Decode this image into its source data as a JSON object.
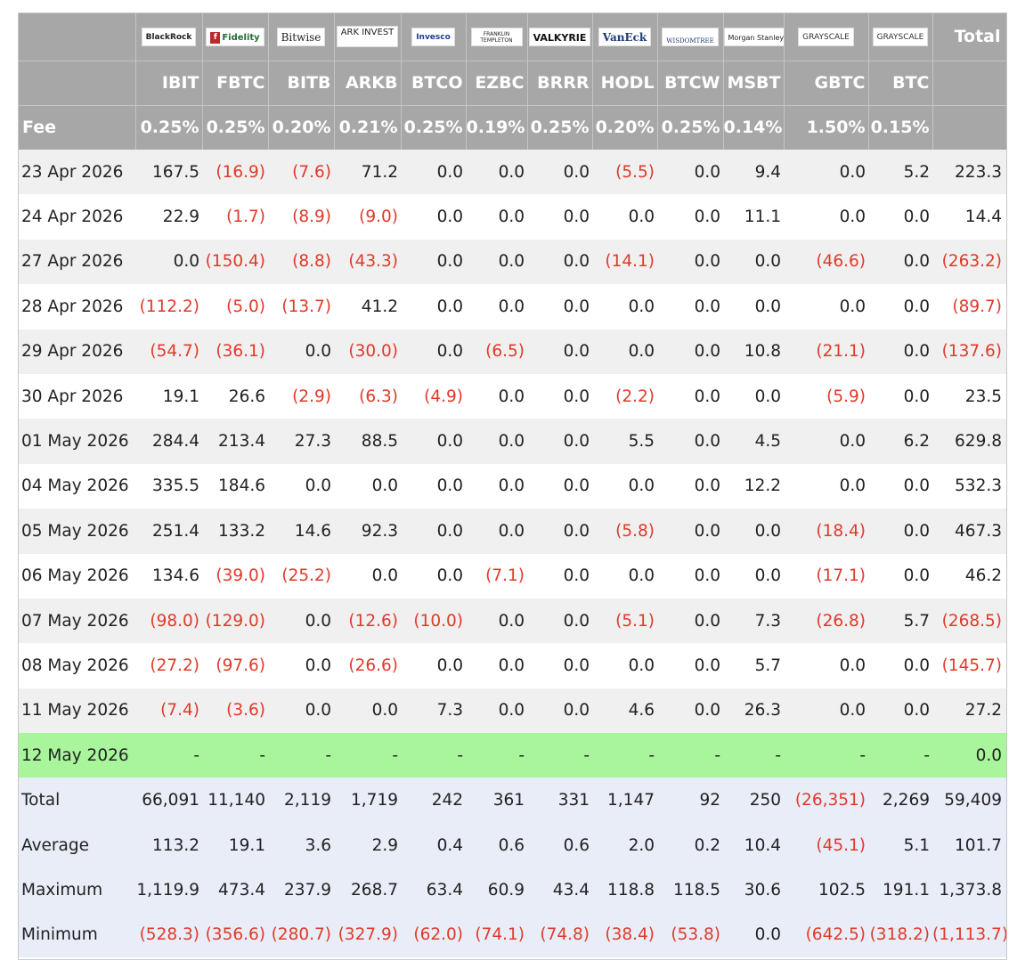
{
  "logos": [
    {
      "text": "BlackRock"
    },
    {
      "text": "Fidelity"
    },
    {
      "text": "Bitwise"
    },
    {
      "text": "ARK INVEST"
    },
    {
      "text": "Invesco"
    },
    {
      "text": "FRANKLIN TEMPLETON"
    },
    {
      "text": "VALKYRIE"
    },
    {
      "text": "VanEck"
    },
    {
      "text": "WISDOMTREE"
    },
    {
      "text": "Morgan Stanley"
    },
    {
      "text": "GRAYSCALE"
    },
    {
      "text": "GRAYSCALE"
    }
  ],
  "total_header": "Total",
  "tickers": [
    "IBIT",
    "FBTC",
    "BITB",
    "ARKB",
    "BTCO",
    "EZBC",
    "BRRR",
    "HODL",
    "BTCW",
    "MSBT",
    "GBTC",
    "BTC"
  ],
  "fee_label": "Fee",
  "fees": [
    "0.25%",
    "0.25%",
    "0.20%",
    "0.21%",
    "0.25%",
    "0.19%",
    "0.25%",
    "0.20%",
    "0.25%",
    "0.14%",
    "1.50%",
    "0.15%"
  ],
  "rows": [
    {
      "date": "23 Apr 2026",
      "values": [
        "167.5",
        "(16.9)",
        "(7.6)",
        "71.2",
        "0.0",
        "0.0",
        "0.0",
        "(5.5)",
        "0.0",
        "9.4",
        "0.0",
        "5.2"
      ],
      "total": "223.3"
    },
    {
      "date": "24 Apr 2026",
      "values": [
        "22.9",
        "(1.7)",
        "(8.9)",
        "(9.0)",
        "0.0",
        "0.0",
        "0.0",
        "0.0",
        "0.0",
        "11.1",
        "0.0",
        "0.0"
      ],
      "total": "14.4"
    },
    {
      "date": "27 Apr 2026",
      "values": [
        "0.0",
        "(150.4)",
        "(8.8)",
        "(43.3)",
        "0.0",
        "0.0",
        "0.0",
        "(14.1)",
        "0.0",
        "0.0",
        "(46.6)",
        "0.0"
      ],
      "total": "(263.2)"
    },
    {
      "date": "28 Apr 2026",
      "values": [
        "(112.2)",
        "(5.0)",
        "(13.7)",
        "41.2",
        "0.0",
        "0.0",
        "0.0",
        "0.0",
        "0.0",
        "0.0",
        "0.0",
        "0.0"
      ],
      "total": "(89.7)"
    },
    {
      "date": "29 Apr 2026",
      "values": [
        "(54.7)",
        "(36.1)",
        "0.0",
        "(30.0)",
        "0.0",
        "(6.5)",
        "0.0",
        "0.0",
        "0.0",
        "10.8",
        "(21.1)",
        "0.0"
      ],
      "total": "(137.6)"
    },
    {
      "date": "30 Apr 2026",
      "values": [
        "19.1",
        "26.6",
        "(2.9)",
        "(6.3)",
        "(4.9)",
        "0.0",
        "0.0",
        "(2.2)",
        "0.0",
        "0.0",
        "(5.9)",
        "0.0"
      ],
      "total": "23.5"
    },
    {
      "date": "01 May 2026",
      "values": [
        "284.4",
        "213.4",
        "27.3",
        "88.5",
        "0.0",
        "0.0",
        "0.0",
        "5.5",
        "0.0",
        "4.5",
        "0.0",
        "6.2"
      ],
      "total": "629.8"
    },
    {
      "date": "04 May 2026",
      "values": [
        "335.5",
        "184.6",
        "0.0",
        "0.0",
        "0.0",
        "0.0",
        "0.0",
        "0.0",
        "0.0",
        "12.2",
        "0.0",
        "0.0"
      ],
      "total": "532.3"
    },
    {
      "date": "05 May 2026",
      "values": [
        "251.4",
        "133.2",
        "14.6",
        "92.3",
        "0.0",
        "0.0",
        "0.0",
        "(5.8)",
        "0.0",
        "0.0",
        "(18.4)",
        "0.0"
      ],
      "total": "467.3"
    },
    {
      "date": "06 May 2026",
      "values": [
        "134.6",
        "(39.0)",
        "(25.2)",
        "0.0",
        "0.0",
        "(7.1)",
        "0.0",
        "0.0",
        "0.0",
        "0.0",
        "(17.1)",
        "0.0"
      ],
      "total": "46.2"
    },
    {
      "date": "07 May 2026",
      "values": [
        "(98.0)",
        "(129.0)",
        "0.0",
        "(12.6)",
        "(10.0)",
        "0.0",
        "0.0",
        "(5.1)",
        "0.0",
        "7.3",
        "(26.8)",
        "5.7"
      ],
      "total": "(268.5)"
    },
    {
      "date": "08 May 2026",
      "values": [
        "(27.2)",
        "(97.6)",
        "0.0",
        "(26.6)",
        "0.0",
        "0.0",
        "0.0",
        "0.0",
        "0.0",
        "5.7",
        "0.0",
        "0.0"
      ],
      "total": "(145.7)"
    },
    {
      "date": "11 May 2026",
      "values": [
        "(7.4)",
        "(3.6)",
        "0.0",
        "0.0",
        "7.3",
        "0.0",
        "0.0",
        "4.6",
        "0.0",
        "26.3",
        "0.0",
        "0.0"
      ],
      "total": "27.2"
    },
    {
      "date": "12 May 2026",
      "values": [
        "-",
        "-",
        "-",
        "-",
        "-",
        "-",
        "-",
        "-",
        "-",
        "-",
        "-",
        "-"
      ],
      "total": "0.0",
      "highlight": true
    }
  ],
  "stats": [
    {
      "label": "Total",
      "values": [
        "66,091",
        "11,140",
        "2,119",
        "1,719",
        "242",
        "361",
        "331",
        "1,147",
        "92",
        "250",
        "(26,351)",
        "2,269"
      ],
      "total": "59,409"
    },
    {
      "label": "Average",
      "values": [
        "113.2",
        "19.1",
        "3.6",
        "2.9",
        "0.4",
        "0.6",
        "0.6",
        "2.0",
        "0.2",
        "10.4",
        "(45.1)",
        "5.1"
      ],
      "total": "101.7"
    },
    {
      "label": "Maximum",
      "values": [
        "1,119.9",
        "473.4",
        "237.9",
        "268.7",
        "63.4",
        "60.9",
        "43.4",
        "118.8",
        "118.5",
        "30.6",
        "102.5",
        "191.1"
      ],
      "total": "1,373.8"
    },
    {
      "label": "Minimum",
      "values": [
        "(528.3)",
        "(356.6)",
        "(280.7)",
        "(327.9)",
        "(62.0)",
        "(74.1)",
        "(74.8)",
        "(38.4)",
        "(53.8)",
        "0.0",
        "(642.5)",
        "(318.2)"
      ],
      "total": "(1,113.7)"
    }
  ],
  "colors": {
    "header_bg": "#a7a7a7",
    "negative": "#e03a2a",
    "highlight_row": "#a9f59c",
    "stats_bg": "#e9edf8",
    "stripe": "#f0f0f0"
  }
}
